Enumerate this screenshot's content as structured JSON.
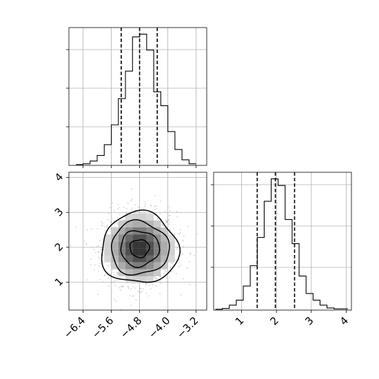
{
  "figure": {
    "kind": "corner-plot",
    "params": 2
  },
  "chart_data": [
    {
      "type": "histogram",
      "panel": "marginal-param-1",
      "xlim": [
        -6.8,
        -2.9
      ],
      "bins": [
        -6.6,
        -6.4,
        -6.2,
        -6.0,
        -5.8,
        -5.6,
        -5.4,
        -5.2,
        -5.0,
        -4.8,
        -4.6,
        -4.4,
        -4.2,
        -4.0,
        -3.8,
        -3.6,
        -3.4,
        -3.2
      ],
      "counts": [
        2,
        4,
        11,
        25,
        52,
        102,
        168,
        237,
        323,
        330,
        290,
        185,
        150,
        85,
        40,
        14,
        4
      ],
      "quantile_lines": [
        -5.32,
        -4.8,
        -4.3
      ],
      "grid": true
    },
    {
      "type": "histogram",
      "panel": "marginal-param-2",
      "xlim": [
        0.2,
        4.15
      ],
      "bins": [
        0.25,
        0.45,
        0.65,
        0.85,
        1.05,
        1.25,
        1.45,
        1.65,
        1.85,
        2.05,
        2.25,
        2.45,
        2.65,
        2.85,
        3.05,
        3.25,
        3.45,
        3.65,
        3.85,
        4.05
      ],
      "counts": [
        2,
        4,
        12,
        24,
        58,
        107,
        175,
        262,
        316,
        300,
        218,
        160,
        82,
        40,
        24,
        12,
        5,
        3,
        3
      ],
      "quantile_lines": [
        1.45,
        1.97,
        2.52
      ],
      "xticks": [
        "1",
        "2",
        "3",
        "4"
      ],
      "grid": true
    },
    {
      "type": "scatter-density",
      "panel": "joint-param-1-vs-param-2",
      "xlim": [
        -6.8,
        -2.9
      ],
      "ylim": [
        0.2,
        4.15
      ],
      "center": [
        -4.8,
        1.97
      ],
      "spread": [
        0.52,
        0.52
      ],
      "xticks": [
        "−6.4",
        "−5.6",
        "−4.8",
        "−4.0",
        "−3.2"
      ],
      "yticks": [
        "1",
        "2",
        "3",
        "4"
      ],
      "contour_levels": [
        "0.5 sigma",
        "1 sigma",
        "1.5 sigma",
        "2 sigma"
      ],
      "grid": true
    }
  ]
}
